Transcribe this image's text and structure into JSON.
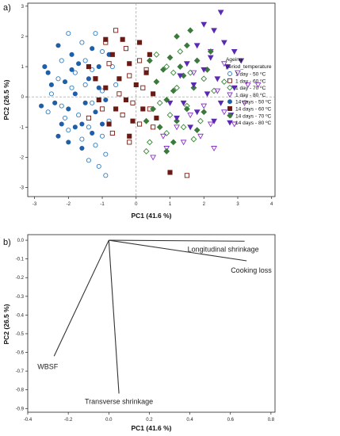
{
  "chart_data": [
    {
      "panel": "a)",
      "type": "scatter",
      "xlabel": "PC1 (41.6 %)",
      "ylabel": "PC2 (26.5 %)",
      "xlim": [
        -3.2,
        4.1
      ],
      "ylim": [
        -3.3,
        3.1
      ],
      "xticks": [
        -3,
        -2,
        -1,
        0,
        1,
        2,
        3,
        4
      ],
      "yticks": [
        -3,
        -2,
        -1,
        0,
        1,
        2,
        3
      ],
      "reference_lines": {
        "x": 0,
        "y": 0,
        "style": "dashed"
      },
      "legend": {
        "title_lines": [
          "Ageing",
          "period_temperature"
        ],
        "placement": "right",
        "entries": [
          {
            "label": "1 day - 50 ºC",
            "marker": "circle-open",
            "color": "#2e7ec4"
          },
          {
            "label": "1 day - 60 ºC",
            "marker": "square-open",
            "color": "#7a1a10"
          },
          {
            "label": "1 day - 70 ºC",
            "marker": "diamond-open",
            "color": "#3a8a3a"
          },
          {
            "label": "1 day - 80 ºC",
            "marker": "triangle-down-open",
            "color": "#8a33c8"
          },
          {
            "label": "14 days - 50 ºC",
            "marker": "circle-filled",
            "color": "#1f5fa8"
          },
          {
            "label": "14 days - 60 ºC",
            "marker": "square-filled",
            "color": "#6a1a14"
          },
          {
            "label": "14 days - 70 ºC",
            "marker": "diamond-filled",
            "color": "#3a7a3a"
          },
          {
            "label": "14 days - 80 ºC",
            "marker": "triangle-down-filled",
            "color": "#5a2ab0"
          }
        ]
      },
      "series": [
        {
          "name": "1 day - 50 ºC",
          "points": [
            [
              -2.0,
              2.1
            ],
            [
              -1.6,
              1.8
            ],
            [
              -1.2,
              2.1
            ],
            [
              -1.0,
              1.5
            ],
            [
              -2.2,
              1.2
            ],
            [
              -1.8,
              0.8
            ],
            [
              -1.5,
              0.4
            ],
            [
              -2.5,
              0.1
            ],
            [
              -2.2,
              -0.3
            ],
            [
              -1.7,
              -0.6
            ],
            [
              -1.3,
              -0.2
            ],
            [
              -1.0,
              0.2
            ],
            [
              -0.8,
              -0.8
            ],
            [
              -1.4,
              -1.0
            ],
            [
              -2.0,
              -1.1
            ],
            [
              -1.2,
              -1.6
            ],
            [
              -0.9,
              -1.9
            ],
            [
              -1.1,
              -2.3
            ],
            [
              -1.5,
              1.2
            ],
            [
              -2.3,
              0.6
            ],
            [
              -1.9,
              0.3
            ],
            [
              -0.7,
              1.0
            ],
            [
              -2.6,
              -0.5
            ],
            [
              -1.0,
              -1.3
            ],
            [
              -1.6,
              -1.4
            ],
            [
              -1.3,
              0.9
            ],
            [
              -0.6,
              0.4
            ],
            [
              -2.1,
              -0.7
            ],
            [
              -0.9,
              -2.6
            ],
            [
              -1.4,
              -2.1
            ]
          ]
        },
        {
          "name": "1 day - 60 ºC",
          "points": [
            [
              -0.6,
              2.2
            ],
            [
              -0.3,
              1.6
            ],
            [
              0.1,
              1.2
            ],
            [
              -0.8,
              1.1
            ],
            [
              -0.2,
              0.7
            ],
            [
              0.2,
              0.3
            ],
            [
              -0.5,
              0.1
            ],
            [
              -1.0,
              -0.4
            ],
            [
              -0.4,
              -0.6
            ],
            [
              0.1,
              -0.9
            ],
            [
              -0.7,
              -1.2
            ],
            [
              -0.2,
              -1.5
            ],
            [
              0.5,
              -1.0
            ],
            [
              -1.2,
              0.6
            ],
            [
              0.3,
              0.9
            ],
            [
              -0.1,
              -0.2
            ],
            [
              -0.9,
              1.8
            ],
            [
              1.5,
              -2.6
            ],
            [
              -1.4,
              -0.7
            ],
            [
              0.4,
              -0.4
            ]
          ]
        },
        {
          "name": "1 day - 70 ºC",
          "points": [
            [
              0.6,
              1.4
            ],
            [
              0.9,
              1.0
            ],
            [
              1.3,
              1.5
            ],
            [
              1.6,
              0.8
            ],
            [
              2.0,
              0.6
            ],
            [
              1.2,
              0.3
            ],
            [
              0.7,
              -0.2
            ],
            [
              1.0,
              -0.6
            ],
            [
              1.5,
              -0.3
            ],
            [
              1.9,
              -0.8
            ],
            [
              0.9,
              -1.2
            ],
            [
              0.4,
              -1.5
            ],
            [
              1.4,
              -1.0
            ],
            [
              2.3,
              0.2
            ],
            [
              2.6,
              0.5
            ],
            [
              0.3,
              -1.8
            ],
            [
              1.7,
              -1.4
            ],
            [
              1.1,
              0.8
            ]
          ]
        },
        {
          "name": "1 day - 80 ºC",
          "points": [
            [
              2.2,
              1.5
            ],
            [
              2.6,
              1.1
            ],
            [
              3.0,
              0.8
            ],
            [
              3.3,
              0.4
            ],
            [
              3.6,
              0.4
            ],
            [
              2.4,
              0.2
            ],
            [
              2.0,
              -0.3
            ],
            [
              1.6,
              -0.6
            ],
            [
              1.2,
              -1.0
            ],
            [
              0.8,
              -1.3
            ],
            [
              2.6,
              -0.5
            ],
            [
              2.2,
              -0.9
            ],
            [
              1.4,
              -1.5
            ],
            [
              0.9,
              -1.7
            ],
            [
              0.5,
              -2.0
            ],
            [
              1.9,
              -1.3
            ],
            [
              2.9,
              -0.9
            ],
            [
              3.2,
              -0.2
            ],
            [
              1.7,
              0.8
            ],
            [
              2.3,
              -1.7
            ]
          ]
        },
        {
          "name": "14 days - 50 ºC",
          "points": [
            [
              -2.3,
              1.7
            ],
            [
              -1.9,
              1.4
            ],
            [
              -2.6,
              0.8
            ],
            [
              -2.1,
              0.5
            ],
            [
              -1.8,
              0.1
            ],
            [
              -2.4,
              -0.2
            ],
            [
              -2.0,
              -0.4
            ],
            [
              -1.6,
              -0.9
            ],
            [
              -1.2,
              -0.5
            ],
            [
              -2.8,
              -0.3
            ],
            [
              -1.4,
              0.6
            ],
            [
              -1.1,
              1.0
            ],
            [
              -2.2,
              -0.9
            ],
            [
              -1.7,
              1.1
            ],
            [
              -1.3,
              -1.2
            ],
            [
              -2.0,
              -1.5
            ],
            [
              -1.0,
              -0.9
            ],
            [
              -2.5,
              0.4
            ],
            [
              -1.5,
              -0.2
            ],
            [
              -1.9,
              0.9
            ],
            [
              -1.1,
              0.3
            ],
            [
              -1.6,
              -1.7
            ],
            [
              -2.3,
              -1.3
            ],
            [
              -0.8,
              1.4
            ],
            [
              -1.3,
              1.6
            ],
            [
              -2.7,
              1.0
            ],
            [
              -0.9,
              -0.1
            ],
            [
              -1.8,
              -1.0
            ]
          ]
        },
        {
          "name": "14 days - 60 ºC",
          "points": [
            [
              -0.4,
              1.9
            ],
            [
              0.1,
              1.8
            ],
            [
              -0.7,
              1.4
            ],
            [
              -0.2,
              1.1
            ],
            [
              0.3,
              0.8
            ],
            [
              -0.5,
              0.6
            ],
            [
              0.0,
              0.4
            ],
            [
              -0.9,
              0.3
            ],
            [
              -0.3,
              -0.1
            ],
            [
              0.2,
              -0.4
            ],
            [
              -0.6,
              -0.4
            ],
            [
              -1.1,
              -0.1
            ],
            [
              0.5,
              0.1
            ],
            [
              -0.1,
              -0.8
            ],
            [
              -0.8,
              -0.9
            ],
            [
              0.6,
              -0.7
            ],
            [
              -1.4,
              1.0
            ],
            [
              0.4,
              1.4
            ],
            [
              -0.2,
              -1.3
            ],
            [
              -0.9,
              1.9
            ],
            [
              1.0,
              -2.5
            ],
            [
              -1.2,
              0.6
            ]
          ]
        },
        {
          "name": "14 days - 70 ºC",
          "points": [
            [
              1.2,
              2.0
            ],
            [
              1.5,
              1.7
            ],
            [
              1.0,
              1.3
            ],
            [
              1.8,
              1.2
            ],
            [
              0.8,
              0.9
            ],
            [
              1.4,
              0.7
            ],
            [
              2.1,
              0.9
            ],
            [
              0.6,
              0.5
            ],
            [
              1.1,
              0.2
            ],
            [
              1.7,
              0.3
            ],
            [
              0.9,
              -0.1
            ],
            [
              1.5,
              -0.4
            ],
            [
              0.5,
              -0.4
            ],
            [
              2.0,
              -0.5
            ],
            [
              1.2,
              -0.8
            ],
            [
              0.7,
              -1.0
            ],
            [
              1.8,
              -1.1
            ],
            [
              1.1,
              -1.5
            ],
            [
              2.2,
              1.5
            ],
            [
              0.4,
              1.2
            ],
            [
              1.6,
              2.2
            ],
            [
              0.3,
              -0.8
            ],
            [
              0.9,
              -1.8
            ],
            [
              1.3,
              1.0
            ]
          ]
        },
        {
          "name": "14 days - 80 ºC",
          "points": [
            [
              2.5,
              2.8
            ],
            [
              2.3,
              2.2
            ],
            [
              2.0,
              2.4
            ],
            [
              2.6,
              1.8
            ],
            [
              2.9,
              1.5
            ],
            [
              1.8,
              1.7
            ],
            [
              2.2,
              1.3
            ],
            [
              2.7,
              1.0
            ],
            [
              1.5,
              1.1
            ],
            [
              2.0,
              0.9
            ],
            [
              2.4,
              0.6
            ],
            [
              1.7,
              0.4
            ],
            [
              2.1,
              0.1
            ],
            [
              2.5,
              -0.2
            ],
            [
              1.4,
              -0.2
            ],
            [
              1.8,
              -0.5
            ],
            [
              2.3,
              -0.8
            ],
            [
              1.2,
              -0.7
            ],
            [
              2.9,
              0.3
            ],
            [
              1.0,
              -0.2
            ],
            [
              1.6,
              -1.0
            ],
            [
              2.8,
              -0.6
            ],
            [
              3.1,
              1.2
            ],
            [
              1.3,
              0.7
            ]
          ]
        }
      ]
    },
    {
      "panel": "b)",
      "type": "line",
      "subtype": "loading-plot",
      "xlabel": "PC1 (41.6 %)",
      "ylabel": "PC2 (26.5 %)",
      "xlim": [
        -0.4,
        0.82
      ],
      "ylim": [
        -0.92,
        0.03
      ],
      "xticks": [
        -0.4,
        -0.2,
        0.0,
        0.2,
        0.4,
        0.6,
        0.8
      ],
      "yticks": [
        0.0,
        -0.1,
        -0.2,
        -0.3,
        -0.4,
        -0.5,
        -0.6,
        -0.7,
        -0.8,
        -0.9
      ],
      "tick_labels_x": [
        "-0.4",
        "-0.2",
        "0.0",
        "0.2",
        "0.4",
        "0.6",
        "0.8"
      ],
      "tick_labels_y": [
        "0.0",
        "-0.1",
        "-0.2",
        "-0.3",
        "-0.4",
        "-0.5",
        "-0.6",
        "-0.7",
        "-0.8",
        "-0.9"
      ],
      "loadings": [
        {
          "name": "Longitudinal shrinkage",
          "x": 0.67,
          "y": -0.005
        },
        {
          "name": "Cooking loss",
          "x": 0.68,
          "y": -0.11
        },
        {
          "name": "WBSF",
          "x": -0.27,
          "y": -0.62
        },
        {
          "name": "Transverse shrinkage",
          "x": 0.05,
          "y": -0.82
        }
      ]
    }
  ]
}
